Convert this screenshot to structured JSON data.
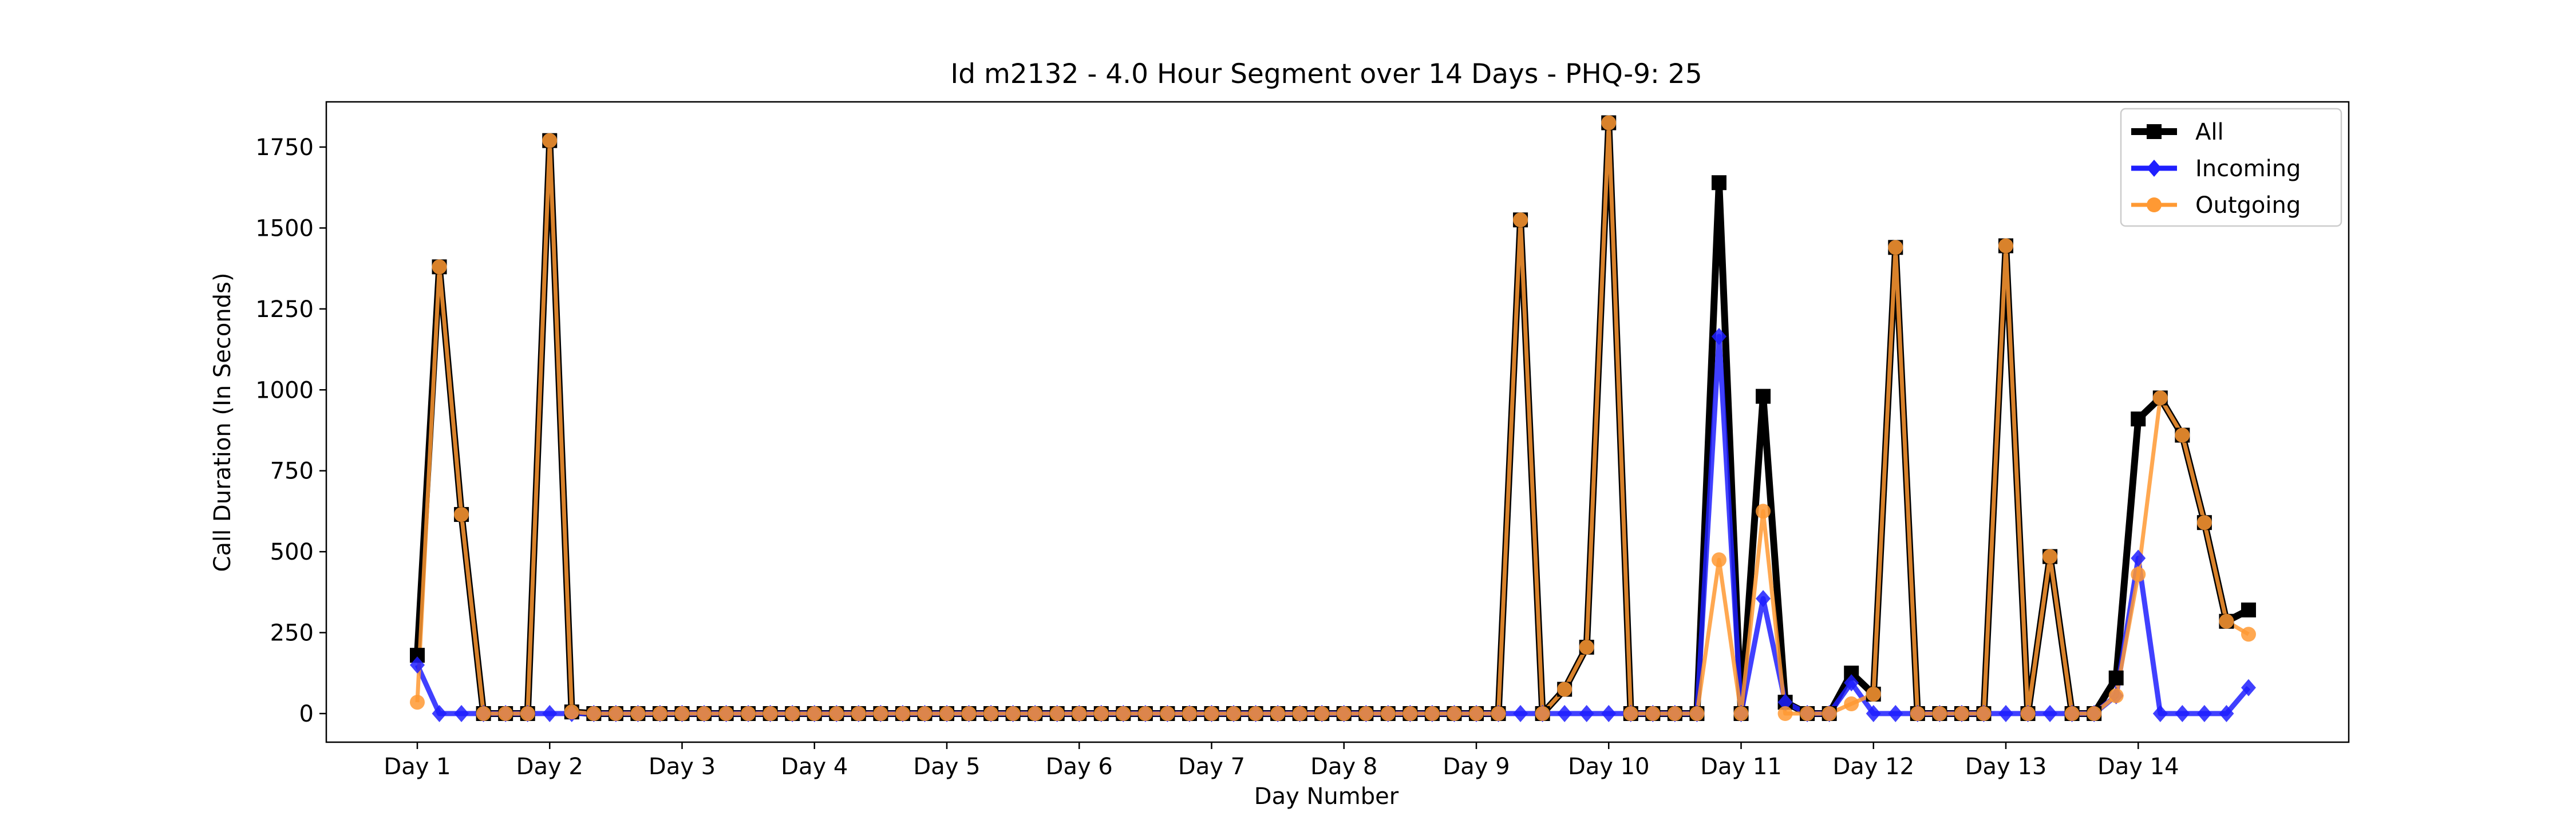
{
  "chart_data": {
    "type": "line",
    "title": "Id m2132 - 4.0 Hour Segment over 14 Days - PHQ-9: 25",
    "xlabel": "Day Number",
    "ylabel": "Call Duration (In Seconds)",
    "xlim": [
      -0.25,
      6.125
    ],
    "ylim": [
      -90,
      1920
    ],
    "yticks": [
      0,
      250,
      500,
      750,
      1000,
      1250,
      1500,
      1750
    ],
    "xticks": [
      {
        "label": "Day 1",
        "x": 0
      },
      {
        "label": "Day 2",
        "x": 0.5
      },
      {
        "label": "Day 3",
        "x": 1
      },
      {
        "label": "Day 4",
        "x": 1.5
      },
      {
        "label": "Day 5",
        "x": 2
      },
      {
        "label": "Day 6",
        "x": 2.5
      },
      {
        "label": "Day 7",
        "x": 3
      },
      {
        "label": "Day 8",
        "x": 3.5
      },
      {
        "label": "Day 9",
        "x": 4
      },
      {
        "label": "Day 10",
        "x": 4.5
      },
      {
        "label": "Day 11",
        "x": 5
      },
      {
        "label": "Day 12",
        "x": 5.5
      },
      {
        "label": "Day 13",
        "x": 6
      },
      {
        "label": "Day 14",
        "x": 6.5
      }
    ],
    "x_step": 0.08333,
    "legend_position": "top-right",
    "series": [
      {
        "name": "All",
        "color": "#000000",
        "marker": "square",
        "values": [
          180,
          1380,
          615,
          0,
          0,
          0,
          1770,
          5,
          0,
          0,
          0,
          0,
          0,
          0,
          0,
          0,
          0,
          0,
          0,
          0,
          0,
          0,
          0,
          0,
          0,
          0,
          0,
          0,
          0,
          0,
          0,
          0,
          0,
          0,
          0,
          0,
          0,
          0,
          0,
          0,
          0,
          0,
          0,
          0,
          0,
          0,
          0,
          0,
          0,
          0,
          1525,
          0,
          75,
          205,
          1825,
          0,
          0,
          0,
          0,
          1640,
          0,
          980,
          35,
          0,
          0,
          125,
          60,
          1440,
          0,
          0,
          0,
          0,
          1445,
          0,
          485,
          0,
          0,
          110,
          910,
          975,
          860,
          590,
          285,
          320
        ]
      },
      {
        "name": "Incoming",
        "color": "#1f1fff",
        "marker": "diamond",
        "values": [
          150,
          0,
          0,
          0,
          0,
          0,
          0,
          0,
          0,
          0,
          0,
          0,
          0,
          0,
          0,
          0,
          0,
          0,
          0,
          0,
          0,
          0,
          0,
          0,
          0,
          0,
          0,
          0,
          0,
          0,
          0,
          0,
          0,
          0,
          0,
          0,
          0,
          0,
          0,
          0,
          0,
          0,
          0,
          0,
          0,
          0,
          0,
          0,
          0,
          0,
          0,
          0,
          0,
          0,
          0,
          0,
          0,
          0,
          0,
          1165,
          0,
          355,
          35,
          0,
          0,
          95,
          0,
          0,
          0,
          0,
          0,
          0,
          0,
          0,
          0,
          0,
          0,
          55,
          480,
          0,
          0,
          0,
          0,
          80
        ]
      },
      {
        "name": "Outgoing",
        "color": "#ff9933",
        "marker": "circle",
        "values": [
          35,
          1380,
          615,
          0,
          0,
          0,
          1770,
          5,
          0,
          0,
          0,
          0,
          0,
          0,
          0,
          0,
          0,
          0,
          0,
          0,
          0,
          0,
          0,
          0,
          0,
          0,
          0,
          0,
          0,
          0,
          0,
          0,
          0,
          0,
          0,
          0,
          0,
          0,
          0,
          0,
          0,
          0,
          0,
          0,
          0,
          0,
          0,
          0,
          0,
          0,
          1525,
          0,
          75,
          205,
          1825,
          0,
          0,
          0,
          0,
          475,
          0,
          625,
          0,
          0,
          0,
          30,
          60,
          1440,
          0,
          0,
          0,
          0,
          1445,
          0,
          485,
          0,
          0,
          55,
          430,
          975,
          860,
          590,
          285,
          245
        ]
      }
    ]
  }
}
